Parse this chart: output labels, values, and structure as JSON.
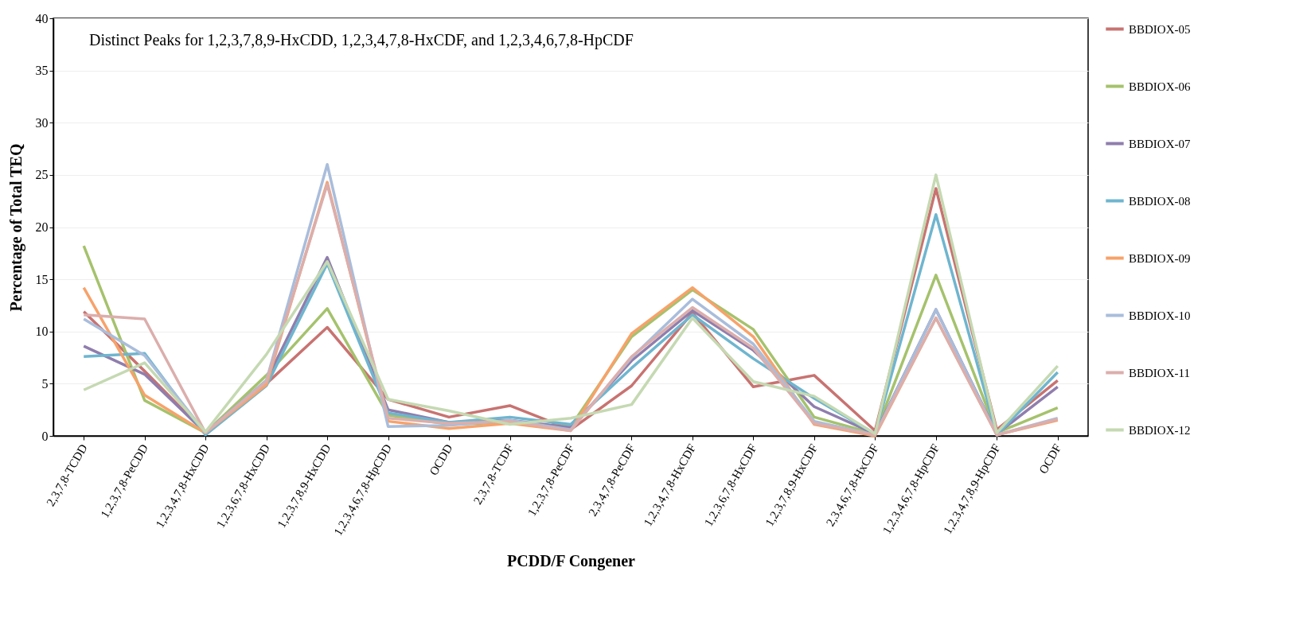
{
  "chart_data": {
    "type": "line",
    "xlabel": "PCDD/F Congener",
    "ylabel": "Percentage of Total TEQ",
    "annotations": [
      "Distinct Peaks for 1,2,3,7,8,9-HxCDD, 1,2,3,4,7,8-HxCDF, and 1,2,3,4,6,7,8-HpCDF"
    ],
    "categories": [
      "2,3,7,8-TCDD",
      "1,2,3,7,8-PeCDD",
      "1,2,3,4,7,8-HxCDD",
      "1,2,3,6,7,8-HxCDD",
      "1,2,3,7,8,9-HxCDD",
      "1,2,3,4,6,7,8-HpCDD",
      "OCDD",
      "2,3,7,8-TCDF",
      "1,2,3,7,8-PeCDF",
      "2,3,4,7,8-PeCDF",
      "1,2,3,4,7,8-HxCDF",
      "1,2,3,6,7,8-HxCDF",
      "1,2,3,7,8,9-HxCDF",
      "2,3,4,6,7,8-HxCDF",
      "1,2,3,4,6,7,8-HpCDF",
      "1,2,3,4,7,8,9-HpCDF",
      "OCDF"
    ],
    "series": [
      {
        "name": "BBDIOX-05",
        "color": "#c87371",
        "values": [
          11.9,
          6.2,
          0.3,
          5.0,
          10.4,
          3.5,
          1.8,
          2.9,
          0.6,
          4.8,
          11.8,
          4.7,
          5.8,
          0.5,
          23.7,
          0.6,
          5.3
        ]
      },
      {
        "name": "BBDIOX-06",
        "color": "#a5c26c",
        "values": [
          18.2,
          3.4,
          0.3,
          5.8,
          12.2,
          2.0,
          1.1,
          1.3,
          0.9,
          9.5,
          14.0,
          10.2,
          1.8,
          0.2,
          15.4,
          0.3,
          2.7
        ]
      },
      {
        "name": "BBDIOX-07",
        "color": "#8f7ead",
        "values": [
          8.6,
          5.9,
          0.3,
          5.3,
          17.1,
          2.5,
          1.3,
          1.5,
          0.8,
          7.2,
          12.0,
          8.2,
          2.8,
          0.2,
          12.1,
          0.2,
          4.7
        ]
      },
      {
        "name": "BBDIOX-08",
        "color": "#6fb5cf",
        "values": [
          7.6,
          7.9,
          0.1,
          4.8,
          16.5,
          2.2,
          1.3,
          1.8,
          1.1,
          6.5,
          11.6,
          7.4,
          3.6,
          0.2,
          21.2,
          0.1,
          6.1
        ]
      },
      {
        "name": "BBDIOX-09",
        "color": "#f7a26a",
        "values": [
          14.2,
          3.9,
          0.3,
          4.9,
          24.3,
          1.4,
          0.7,
          1.2,
          0.5,
          9.8,
          14.2,
          9.5,
          1.1,
          0.0,
          11.3,
          0.1,
          1.5
        ]
      },
      {
        "name": "BBDIOX-10",
        "color": "#a9bddb",
        "values": [
          11.2,
          7.7,
          0.3,
          5.3,
          26.0,
          0.9,
          1.0,
          1.5,
          0.6,
          7.5,
          13.1,
          8.8,
          1.4,
          0.1,
          12.1,
          0.1,
          1.7
        ]
      },
      {
        "name": "BBDIOX-11",
        "color": "#dbaeac",
        "values": [
          11.6,
          11.2,
          0.3,
          5.2,
          24.1,
          1.7,
          1.2,
          1.4,
          0.5,
          7.6,
          12.3,
          8.4,
          1.2,
          0.1,
          11.3,
          0.1,
          1.6
        ]
      },
      {
        "name": "BBDIOX-12",
        "color": "#c5d9b2",
        "values": [
          4.4,
          7.0,
          0.4,
          7.8,
          16.7,
          3.5,
          2.4,
          1.1,
          1.7,
          3.0,
          11.3,
          5.2,
          3.8,
          0.2,
          25.0,
          0.3,
          6.7
        ]
      }
    ],
    "ylim": [
      0,
      40
    ],
    "yticks": [
      0,
      5,
      10,
      15,
      20,
      25,
      30,
      35,
      40
    ],
    "grid": "y",
    "legend": "right",
    "marker": "none",
    "line_style": "solid"
  }
}
